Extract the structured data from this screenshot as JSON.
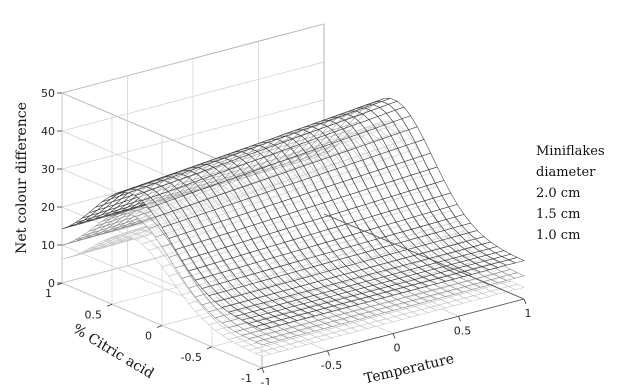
{
  "chart_data": {
    "type": "surface",
    "title": "",
    "xlabel": "Temperature",
    "ylabel": "% Citric acid",
    "zlabel": "Net colour difference",
    "xlim": [
      -1,
      1
    ],
    "ylim": [
      -1,
      1
    ],
    "zlim": [
      0,
      50
    ],
    "x_ticks": [
      -1,
      -0.5,
      0,
      0.5,
      1
    ],
    "y_ticks": [
      -1,
      -0.5,
      0,
      0.5,
      1
    ],
    "z_ticks": [
      0,
      10,
      20,
      30,
      40,
      50
    ],
    "x_tick_labels": [
      "-1",
      "-0.5",
      "0",
      "0.5",
      "1"
    ],
    "y_tick_labels": [
      "-1",
      "-0.5",
      "0",
      "0.5",
      "1"
    ],
    "z_tick_labels": [
      "0",
      "10",
      "20",
      "30",
      "40",
      "50"
    ],
    "grid": true,
    "legend_position": "right",
    "legend": {
      "title_lines": [
        "Miniflakes",
        "diameter"
      ],
      "entries": [
        "2.0 cm",
        "1.5 cm",
        "1.0 cm"
      ]
    },
    "series": [
      {
        "name": "2.0 cm",
        "color": "#3a3a3a",
        "zmax": 38,
        "zmin": 10
      },
      {
        "name": "1.5 cm",
        "color": "#8a8a8a",
        "zmax": 32,
        "zmin": 6
      },
      {
        "name": "1.0 cm",
        "color": "#c4c4c4",
        "zmax": 25,
        "zmin": 3
      }
    ]
  }
}
